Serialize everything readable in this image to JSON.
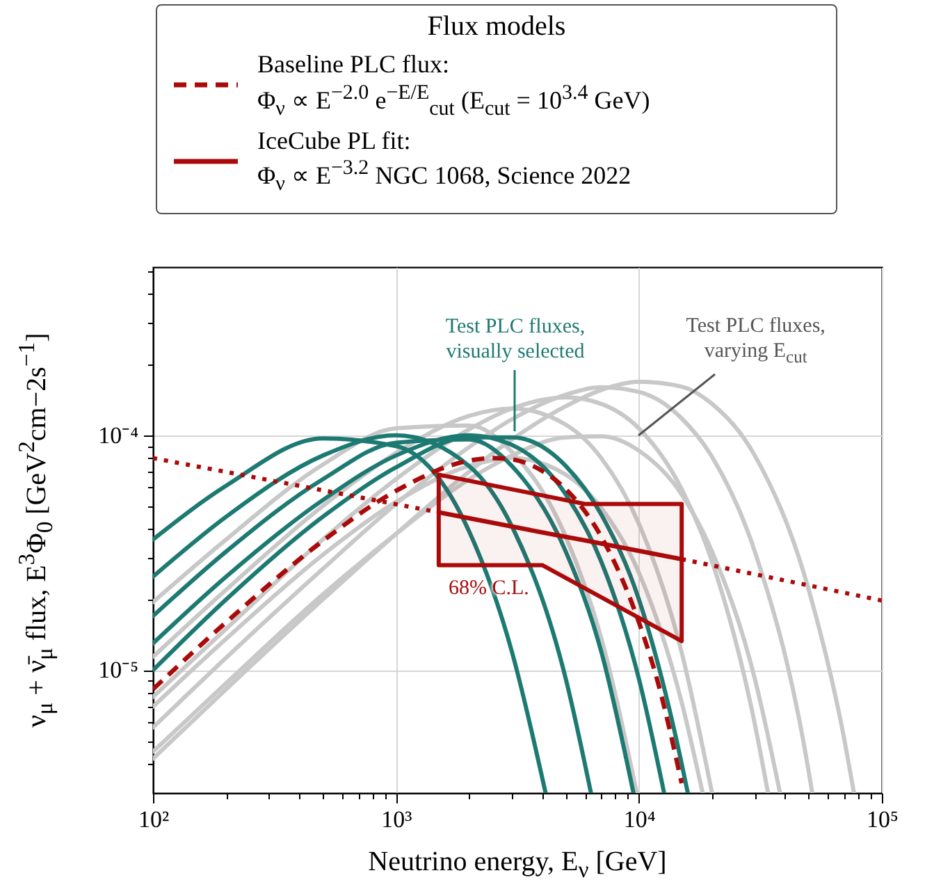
{
  "chart_data": {
    "type": "line",
    "log": "xy",
    "grid": true,
    "legend": "top",
    "legend_title": "Flux models",
    "xlabel": "Neutrino energy, E$_{ν}$ [GeV]",
    "ylabel": "ν$_{μ}$ + ν̄$_{μ}$ flux, E$^{3}$Φ$_{0}$ [GeV$^{2}$cm−2s$^{−1}$]",
    "xlim": [
      100,
      100000
    ],
    "ylim": [
      3e-06,
      0.00052
    ],
    "xticks": [
      {
        "value": 100,
        "label": "10²"
      },
      {
        "value": 200,
        "label": null
      },
      {
        "value": 300,
        "label": null
      },
      {
        "value": 400,
        "label": null
      },
      {
        "value": 500,
        "label": null
      },
      {
        "value": 600,
        "label": null
      },
      {
        "value": 700,
        "label": null
      },
      {
        "value": 800,
        "label": null
      },
      {
        "value": 900,
        "label": null
      },
      {
        "value": 1000,
        "label": "10³"
      },
      {
        "value": 2000,
        "label": null
      },
      {
        "value": 3000,
        "label": null
      },
      {
        "value": 4000,
        "label": null
      },
      {
        "value": 5000,
        "label": null
      },
      {
        "value": 6000,
        "label": null
      },
      {
        "value": 7000,
        "label": null
      },
      {
        "value": 8000,
        "label": null
      },
      {
        "value": 9000,
        "label": null
      },
      {
        "value": 10000,
        "label": "10⁴"
      },
      {
        "value": 20000,
        "label": null
      },
      {
        "value": 30000,
        "label": null
      },
      {
        "value": 40000,
        "label": null
      },
      {
        "value": 50000,
        "label": null
      },
      {
        "value": 60000,
        "label": null
      },
      {
        "value": 70000,
        "label": null
      },
      {
        "value": 80000,
        "label": null
      },
      {
        "value": 90000,
        "label": null
      },
      {
        "value": 100000,
        "label": "10⁵"
      }
    ],
    "yticks": [
      {
        "value": 4e-06,
        "label": null
      },
      {
        "value": 5e-06,
        "label": null
      },
      {
        "value": 6e-06,
        "label": null
      },
      {
        "value": 7e-06,
        "label": null
      },
      {
        "value": 8e-06,
        "label": null
      },
      {
        "value": 9e-06,
        "label": null
      },
      {
        "value": 1e-05,
        "label": "10⁻⁵"
      },
      {
        "value": 2e-05,
        "label": null
      },
      {
        "value": 3e-05,
        "label": null
      },
      {
        "value": 4e-05,
        "label": null
      },
      {
        "value": 5e-05,
        "label": null
      },
      {
        "value": 6e-05,
        "label": null
      },
      {
        "value": 7e-05,
        "label": null
      },
      {
        "value": 8e-05,
        "label": null
      },
      {
        "value": 9e-05,
        "label": null
      },
      {
        "value": 0.0001,
        "label": "10⁻⁴"
      },
      {
        "value": 0.0002,
        "label": null
      },
      {
        "value": 0.0003,
        "label": null
      },
      {
        "value": 0.0004,
        "label": null
      },
      {
        "value": 0.0005,
        "label": null
      }
    ],
    "annotations": [
      {
        "text": "Test PLC fluxes,\nvisually selected",
        "x": 3100,
        "y": 0.000104
      },
      {
        "text": "Test PLC fluxes,\nvarying E$_{cut}$",
        "x": 10000,
        "y": 0.0001
      },
      "68% C.L."
    ],
    "series": [
      {
        "type": "line",
        "color": "#c8c8c8",
        "x": [
          100,
          200,
          500,
          1000,
          2000,
          3000,
          5000,
          7000,
          9800
        ],
        "values": [
          1.95e-05,
          3.6e-05,
          7.5e-05,
          0.000107,
          0.00011,
          8.5e-05,
          3.7e-05,
          1.37e-05,
          3e-06
        ]
      },
      {
        "type": "line",
        "color": "#c8c8c8",
        "x": [
          100,
          200,
          500,
          1000,
          2000,
          3000,
          5000,
          7000,
          10000,
          15000,
          20000
        ],
        "values": [
          1.14e-05,
          2.2e-05,
          5e-05,
          8.4e-05,
          0.000121,
          0.00013,
          0.000111,
          8e-05,
          4.2e-05,
          1.19e-05,
          3e-06
        ]
      },
      {
        "type": "line",
        "color": "#c8c8c8",
        "x": [
          100,
          200,
          500,
          1000,
          2000,
          3000,
          5000,
          7000,
          10000,
          15000,
          18300
        ],
        "values": [
          7e-06,
          1.36e-05,
          3.1e-05,
          5.2e-05,
          7.4e-05,
          8e-05,
          6.8e-05,
          4.9e-05,
          2.6e-05,
          7.3e-06,
          3e-06
        ]
      },
      {
        "type": "line",
        "color": "#c8c8c8",
        "x": [
          100,
          200,
          500,
          1000,
          2000,
          3000,
          5000,
          7000,
          10000,
          15000,
          20000,
          30000,
          34000
        ],
        "values": [
          7.7e-06,
          1.5e-05,
          3.6e-05,
          6.5e-05,
          0.000106,
          0.00013,
          0.000145,
          0.000136,
          0.000107,
          5.9e-05,
          2.9e-05,
          5.9e-06,
          3e-06
        ]
      },
      {
        "type": "line",
        "color": "#c8c8c8",
        "x": [
          100,
          200,
          500,
          1000,
          2000,
          3000,
          5000,
          7000,
          10000,
          15000,
          20000,
          30000,
          38100
        ],
        "values": [
          4.5e-06,
          8.8e-06,
          2.1e-05,
          3.8e-05,
          6.5e-05,
          8.2e-05,
          9.8e-05,
          9.9e-05,
          8.6e-05,
          5.6e-05,
          3.2e-05,
          9.2e-06,
          3e-06
        ]
      },
      {
        "type": "line",
        "color": "#c8c8c8",
        "x": [
          100,
          200,
          500,
          1000,
          2000,
          3000,
          5000,
          7000,
          10000,
          15000,
          20000,
          30000,
          50000,
          51700
        ],
        "values": [
          5.7e-06,
          1.13e-05,
          2.7e-05,
          5.1e-05,
          8.9e-05,
          0.000117,
          0.000149,
          0.00016,
          0.000153,
          0.000118,
          8.1e-05,
          3.2e-05,
          3.7e-06,
          3e-06
        ]
      },
      {
        "type": "line",
        "color": "#c8c8c8",
        "x": [
          100,
          200,
          500,
          1000,
          2000,
          3000,
          5000,
          7000,
          10000,
          15000,
          20000,
          30000,
          50000,
          70000,
          76800
        ],
        "values": [
          4.2e-06,
          8.3e-06,
          2e-05,
          3.8e-05,
          7e-05,
          9.6e-05,
          0.000133,
          0.000156,
          0.000169,
          0.000161,
          0.000136,
          8.2e-05,
          2.2e-05,
          5.1e-06,
          3e-06
        ]
      },
      {
        "type": "line",
        "color": "#1d7a72",
        "x": [
          100,
          200,
          500,
          1000,
          2000,
          3000,
          4130
        ],
        "values": [
          3.6e-05,
          6.1e-05,
          9.7e-05,
          9e-05,
          3.9e-05,
          1.2e-05,
          3e-06
        ]
      },
      {
        "type": "line",
        "color": "#1d7a72",
        "x": [
          100,
          200,
          500,
          1000,
          2000,
          3000,
          5000,
          6350
        ],
        "values": [
          2.5e-05,
          4.5e-05,
          8.2e-05,
          0.0001,
          7.4e-05,
          4.1e-05,
          9.2e-06,
          3e-06
        ]
      },
      {
        "type": "line",
        "color": "#1d7a72",
        "x": [
          100,
          200,
          500,
          1000,
          2000,
          3000,
          5000,
          7000,
          9500
        ],
        "values": [
          1.7e-05,
          3.2e-05,
          6.5e-05,
          9.3e-05,
          9.6e-05,
          7.4e-05,
          3.2e-05,
          1.2e-05,
          3e-06
        ]
      },
      {
        "type": "line",
        "color": "#1d7a72",
        "x": [
          100,
          200,
          500,
          1000,
          2000,
          3000,
          5000,
          7000,
          10000,
          12700
        ],
        "values": [
          1.3e-05,
          2.5e-05,
          5.3e-05,
          8.2e-05,
          0.0001,
          9.1e-05,
          5.6e-05,
          2.9e-05,
          9.2e-06,
          3e-06
        ]
      },
      {
        "type": "line",
        "color": "#1d7a72",
        "x": [
          100,
          200,
          500,
          1000,
          2000,
          3000,
          5000,
          7000,
          10000,
          15000,
          15900
        ],
        "values": [
          1e-05,
          2e-05,
          4.5e-05,
          7.3e-05,
          9.8e-05,
          9.8e-05,
          7.4e-05,
          4.6e-05,
          2e-05,
          4e-06,
          3e-06
        ]
      },
      {
        "type": "line",
        "color": "#aa0a0a",
        "line_style": "dashed",
        "name": "Baseline PLC flux:\nΦ$_{ν}$ ∝ E$^{−2.0}$ e$^{−E/E}$$_{cut}$  (E$_{cut}$ = 10$^{3.4}$ GeV)",
        "x": [
          100,
          200,
          500,
          1000,
          2000,
          2512,
          3000,
          4000,
          5000,
          7000,
          10000,
          12000,
          15000
        ],
        "values": [
          8.3e-06,
          1.6e-05,
          3.55e-05,
          5.8e-05,
          7.8e-05,
          8e-05,
          7.9e-05,
          7.05e-05,
          5.9e-05,
          3.7e-05,
          1.6e-05,
          8.8e-06,
          3.3e-06
        ]
      },
      {
        "type": "line",
        "color": "#aa0a0a",
        "line_style": "dotted",
        "x": [
          100,
          1500
        ],
        "values": [
          8e-05,
          4.7e-05
        ]
      },
      {
        "type": "line",
        "color": "#aa0a0a",
        "line_style": "dotted",
        "x": [
          15000,
          100000
        ],
        "values": [
          2.97e-05,
          1.98e-05
        ]
      },
      {
        "type": "line",
        "color": "#aa0a0a",
        "line_style": "solid",
        "name": "IceCube PL fit:\nΦ$_{ν}$ ∝ E$^{−3.2}$  NGC 1068, Science 2022",
        "x": [
          1500,
          4000,
          6000,
          15000
        ],
        "values": [
          4.7e-05,
          3.86e-05,
          3.57e-05,
          2.97e-05
        ],
        "lower": [
          2.8e-05,
          2.8e-05,
          2.23e-05,
          1.33e-05
        ],
        "upper": [
          6.8e-05,
          5.55e-05,
          5.1e-05,
          5.1e-05
        ]
      }
    ]
  }
}
